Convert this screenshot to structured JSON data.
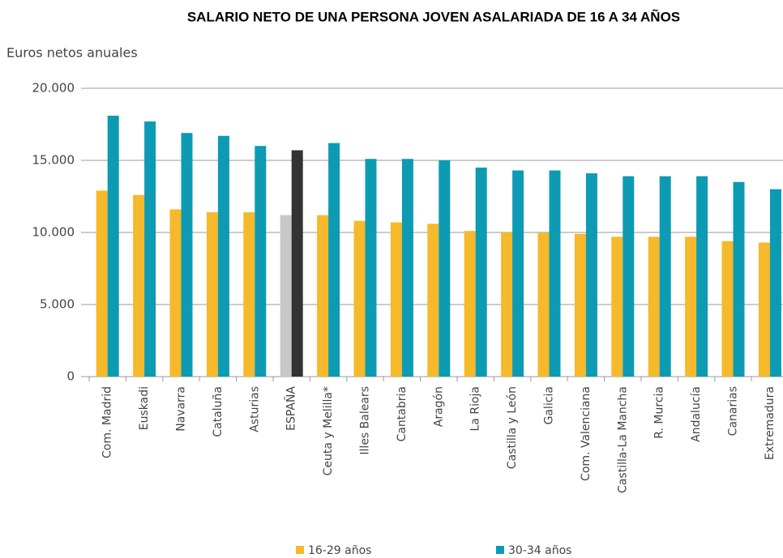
{
  "chart_data": {
    "type": "bar",
    "title": "SALARIO NETO DE UNA PERSONA JOVEN ASALARIADA DE 16 A 34 AÑOS",
    "y_label": "Euros netos anuales",
    "categories": [
      "Com. Madrid",
      "Euskadi",
      "Navarra",
      "Cataluña",
      "Asturias",
      "ESPAÑA",
      "Ceuta y Melilla*",
      "Illes Balears",
      "Cantabria",
      "Aragón",
      "La Rioja",
      "Castilla y León",
      "Galicia",
      "Com. Valenciana",
      "Castilla-La Mancha",
      "R. Murcia",
      "Andalucía",
      "Canarias",
      "Extremadura"
    ],
    "series": [
      {
        "name": "16-29 años",
        "color": "#f6b92b",
        "colors": [
          "#f6b92b",
          "#f6b92b",
          "#f6b92b",
          "#f6b92b",
          "#f6b92b",
          "#c8c8c8",
          "#f6b92b",
          "#f6b92b",
          "#f6b92b",
          "#f6b92b",
          "#f6b92b",
          "#f6b92b",
          "#f6b92b",
          "#f6b92b",
          "#f6b92b",
          "#f6b92b",
          "#f6b92b",
          "#f6b92b",
          "#f6b92b"
        ],
        "values": [
          12900,
          12600,
          11600,
          11400,
          11400,
          11200,
          11200,
          10800,
          10700,
          10600,
          10100,
          10000,
          10000,
          9900,
          9700,
          9700,
          9700,
          9400,
          9300
        ]
      },
      {
        "name": "30-34 años",
        "color": "#0c9bb3",
        "colors": [
          "#0c9bb3",
          "#0c9bb3",
          "#0c9bb3",
          "#0c9bb3",
          "#0c9bb3",
          "#333333",
          "#0c9bb3",
          "#0c9bb3",
          "#0c9bb3",
          "#0c9bb3",
          "#0c9bb3",
          "#0c9bb3",
          "#0c9bb3",
          "#0c9bb3",
          "#0c9bb3",
          "#0c9bb3",
          "#0c9bb3",
          "#0c9bb3",
          "#0c9bb3"
        ],
        "values": [
          18100,
          17700,
          16900,
          16700,
          16000,
          15700,
          16200,
          15100,
          15100,
          15000,
          14500,
          14300,
          14300,
          14100,
          13900,
          13900,
          13900,
          13500,
          13000
        ]
      }
    ],
    "ylim": [
      0,
      20000
    ],
    "yticks": [
      0,
      {
        "value": 5000,
        "label": "5.000"
      },
      {
        "value": 10000,
        "label": "10.000"
      },
      {
        "value": 15000,
        "label": "15.000"
      },
      {
        "value": 20000,
        "label": "20.000"
      }
    ],
    "grid": true,
    "legend": "bottom"
  }
}
